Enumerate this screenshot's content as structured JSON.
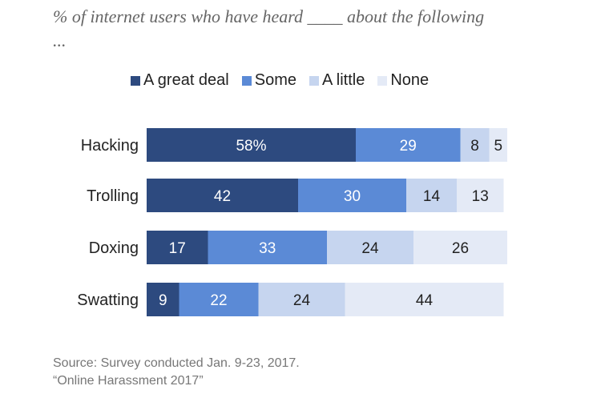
{
  "title": "% of internet users who have heard ____ about the following ...",
  "source_lines": [
    "Source: Survey conducted Jan. 9-23, 2017.",
    "“Online Harassment 2017”"
  ],
  "chart_data": {
    "type": "bar",
    "orientation": "horizontal",
    "stacked": true,
    "categories": [
      "Hacking",
      "Trolling",
      "Doxing",
      "Swatting"
    ],
    "series": [
      {
        "name": "A great deal",
        "values": [
          58,
          42,
          17,
          9
        ],
        "color": "#2d4a7f",
        "label_color": "#ffffff"
      },
      {
        "name": "Some",
        "values": [
          29,
          30,
          33,
          22
        ],
        "color": "#5b8ad6",
        "label_color": "#ffffff"
      },
      {
        "name": "A little",
        "values": [
          8,
          14,
          24,
          24
        ],
        "color": "#c6d5ef",
        "label_color": "#222222"
      },
      {
        "name": "None",
        "values": [
          5,
          13,
          26,
          44
        ],
        "color": "#e4eaf6",
        "label_color": "#222222"
      }
    ],
    "first_label_suffix": "%",
    "legend_position": "top",
    "grid": false
  }
}
